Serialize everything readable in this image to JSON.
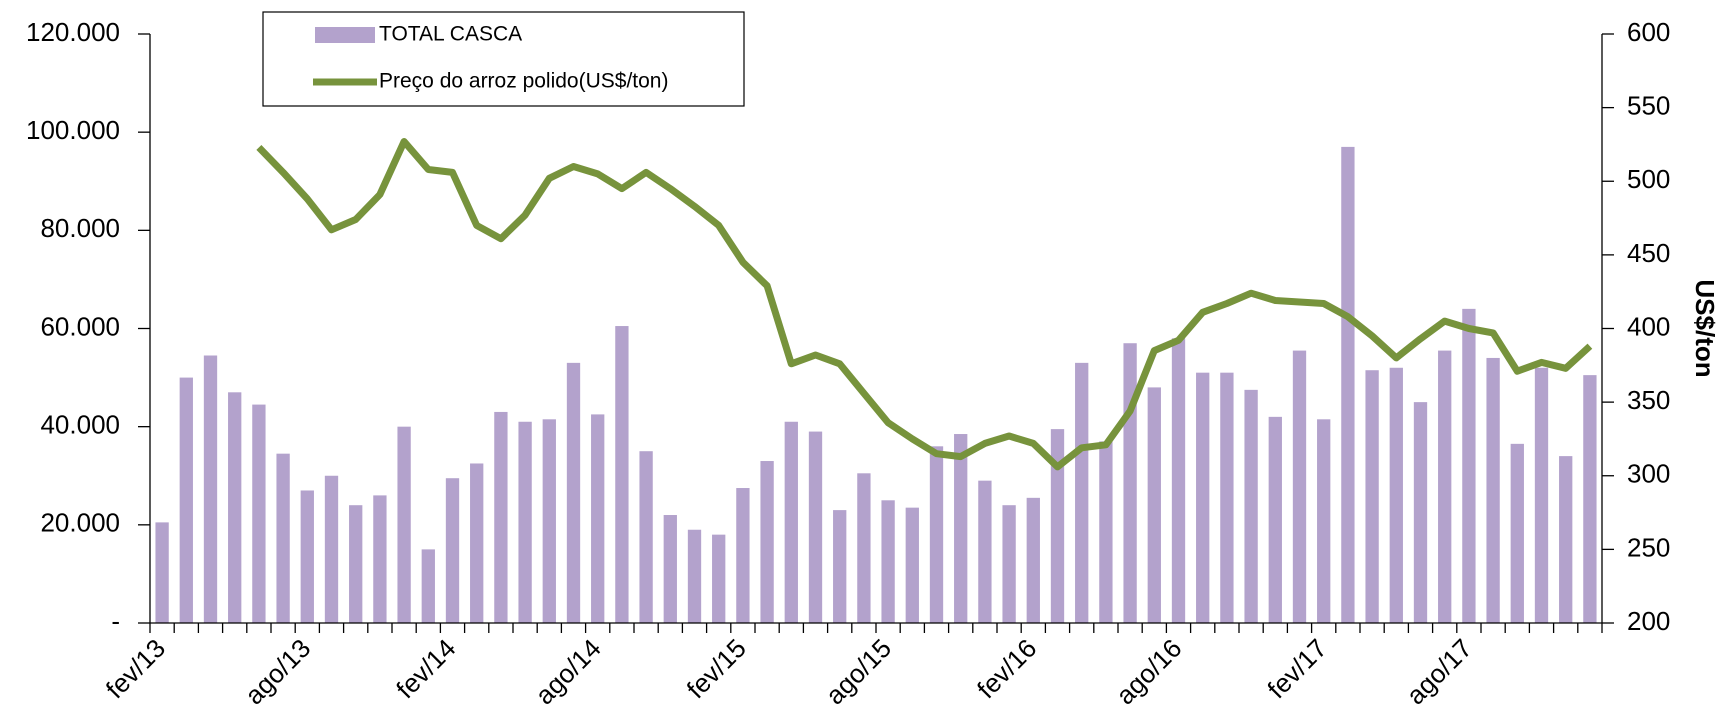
{
  "chart_data": {
    "type": "bar-line",
    "categories": [
      "fev/13",
      null,
      null,
      null,
      null,
      null,
      "ago/13",
      null,
      null,
      null,
      null,
      null,
      "fev/14",
      null,
      null,
      null,
      null,
      null,
      "ago/14",
      null,
      null,
      null,
      null,
      null,
      "fev/15",
      null,
      null,
      null,
      null,
      null,
      "ago/15",
      null,
      null,
      null,
      null,
      null,
      "fev/16",
      null,
      null,
      null,
      null,
      null,
      "ago/16",
      null,
      null,
      null,
      null,
      null,
      "fev/17",
      null,
      null,
      null,
      null,
      null,
      "ago/17",
      null,
      null,
      null,
      null,
      null
    ],
    "series": [
      {
        "name": "TOTAL CASCA",
        "type": "bar",
        "color": "#b3a2cc",
        "values": [
          20500,
          50000,
          54500,
          47000,
          44500,
          34500,
          27000,
          30000,
          24000,
          26000,
          40000,
          15000,
          29500,
          32500,
          43000,
          41000,
          41500,
          53000,
          42500,
          60500,
          35000,
          22000,
          19000,
          18000,
          27500,
          33000,
          41000,
          39000,
          23000,
          30500,
          25000,
          23500,
          36000,
          38500,
          29000,
          24000,
          25500,
          39500,
          53000,
          37000,
          57000,
          48000,
          58000,
          51000,
          51000,
          47500,
          42000,
          55500,
          41500,
          97000,
          51500,
          52000,
          45000,
          55500,
          64000,
          54000,
          36500,
          52000,
          34000,
          50500
        ]
      },
      {
        "name": "Preço do arroz polido(US$/ton)",
        "type": "line",
        "axis": "y2",
        "color": "#77933c",
        "values": [
          null,
          null,
          null,
          null,
          523,
          506,
          488,
          467,
          474,
          491,
          527,
          508,
          506,
          470,
          461,
          477,
          502,
          510,
          505,
          495,
          506,
          495,
          483,
          470,
          445,
          429,
          376,
          382,
          376,
          356,
          336,
          325,
          315,
          313,
          322,
          327,
          322,
          306,
          319,
          321,
          344,
          385,
          392,
          411,
          417,
          424,
          419,
          418,
          417,
          408,
          395,
          380,
          393,
          405,
          400,
          397,
          371,
          377,
          373,
          388
        ]
      }
    ],
    "ylim": [
      0,
      120000
    ],
    "yticks": [
      {
        "value": 0,
        "label": "-"
      },
      {
        "value": 20000,
        "label": "20.000"
      },
      {
        "value": 40000,
        "label": "40.000"
      },
      {
        "value": 60000,
        "label": "60.000"
      },
      {
        "value": 80000,
        "label": "80.000"
      },
      {
        "value": 100000,
        "label": "100.000"
      },
      {
        "value": 120000,
        "label": "120.000"
      }
    ],
    "y2lim": [
      200,
      600
    ],
    "y2ticks": [
      200,
      250,
      300,
      350,
      400,
      450,
      500,
      550,
      600
    ],
    "y2label": "US$/ton",
    "grid": false,
    "legend": "top-left"
  }
}
